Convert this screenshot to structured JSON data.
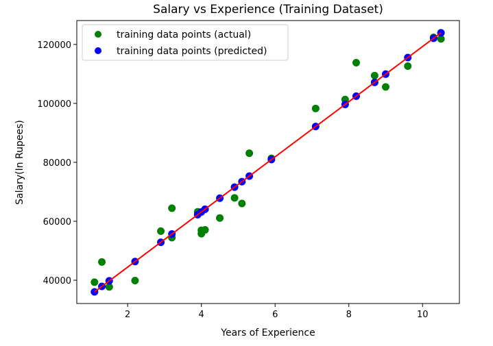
{
  "chart_data": {
    "type": "scatter",
    "title": "Salary vs Experience (Training Dataset)",
    "xlabel": "Years of Experience",
    "ylabel": "Salary(In Rupees)",
    "xlim": [
      0.62,
      11.0
    ],
    "ylim": [
      32100,
      128100
    ],
    "xticks": [
      2,
      4,
      6,
      8,
      10
    ],
    "yticks": [
      40000,
      60000,
      80000,
      100000,
      120000
    ],
    "grid": false,
    "legend_position": "top-left",
    "series": [
      {
        "name": "training data points (actual)",
        "color": "#008000",
        "x": [
          1.1,
          1.3,
          1.5,
          2.2,
          2.9,
          3.2,
          3.2,
          3.9,
          4.0,
          4.0,
          4.1,
          4.5,
          4.9,
          5.1,
          5.3,
          5.9,
          7.1,
          7.9,
          8.2,
          8.7,
          9.0,
          9.6,
          10.3,
          10.5
        ],
        "y": [
          39343,
          46205,
          37731,
          39891,
          56642,
          64445,
          54445,
          63218,
          55794,
          56957,
          57081,
          61111,
          67938,
          66029,
          83088,
          81363,
          98273,
          101302,
          113812,
          109431,
          105582,
          112635,
          122391,
          121872
        ]
      },
      {
        "name": "training data points (predicted)",
        "color": "#0000ff",
        "x": [
          1.1,
          1.3,
          1.5,
          2.2,
          2.9,
          3.2,
          3.9,
          4.0,
          4.1,
          4.5,
          4.9,
          5.1,
          5.3,
          5.9,
          7.1,
          7.9,
          8.2,
          8.7,
          9.0,
          9.6,
          10.3,
          10.5
        ],
        "y": [
          36047,
          37918,
          39788,
          46334,
          52881,
          55686,
          62233,
          63168,
          64103,
          67844,
          71585,
          73455,
          75326,
          80937,
          92159,
          99641,
          102446,
          107122,
          109928,
          115539,
          122086,
          123956
        ]
      }
    ],
    "regression_line": {
      "color": "#ff0000",
      "x": [
        1.1,
        10.5
      ],
      "y": [
        36047,
        123956
      ]
    }
  }
}
